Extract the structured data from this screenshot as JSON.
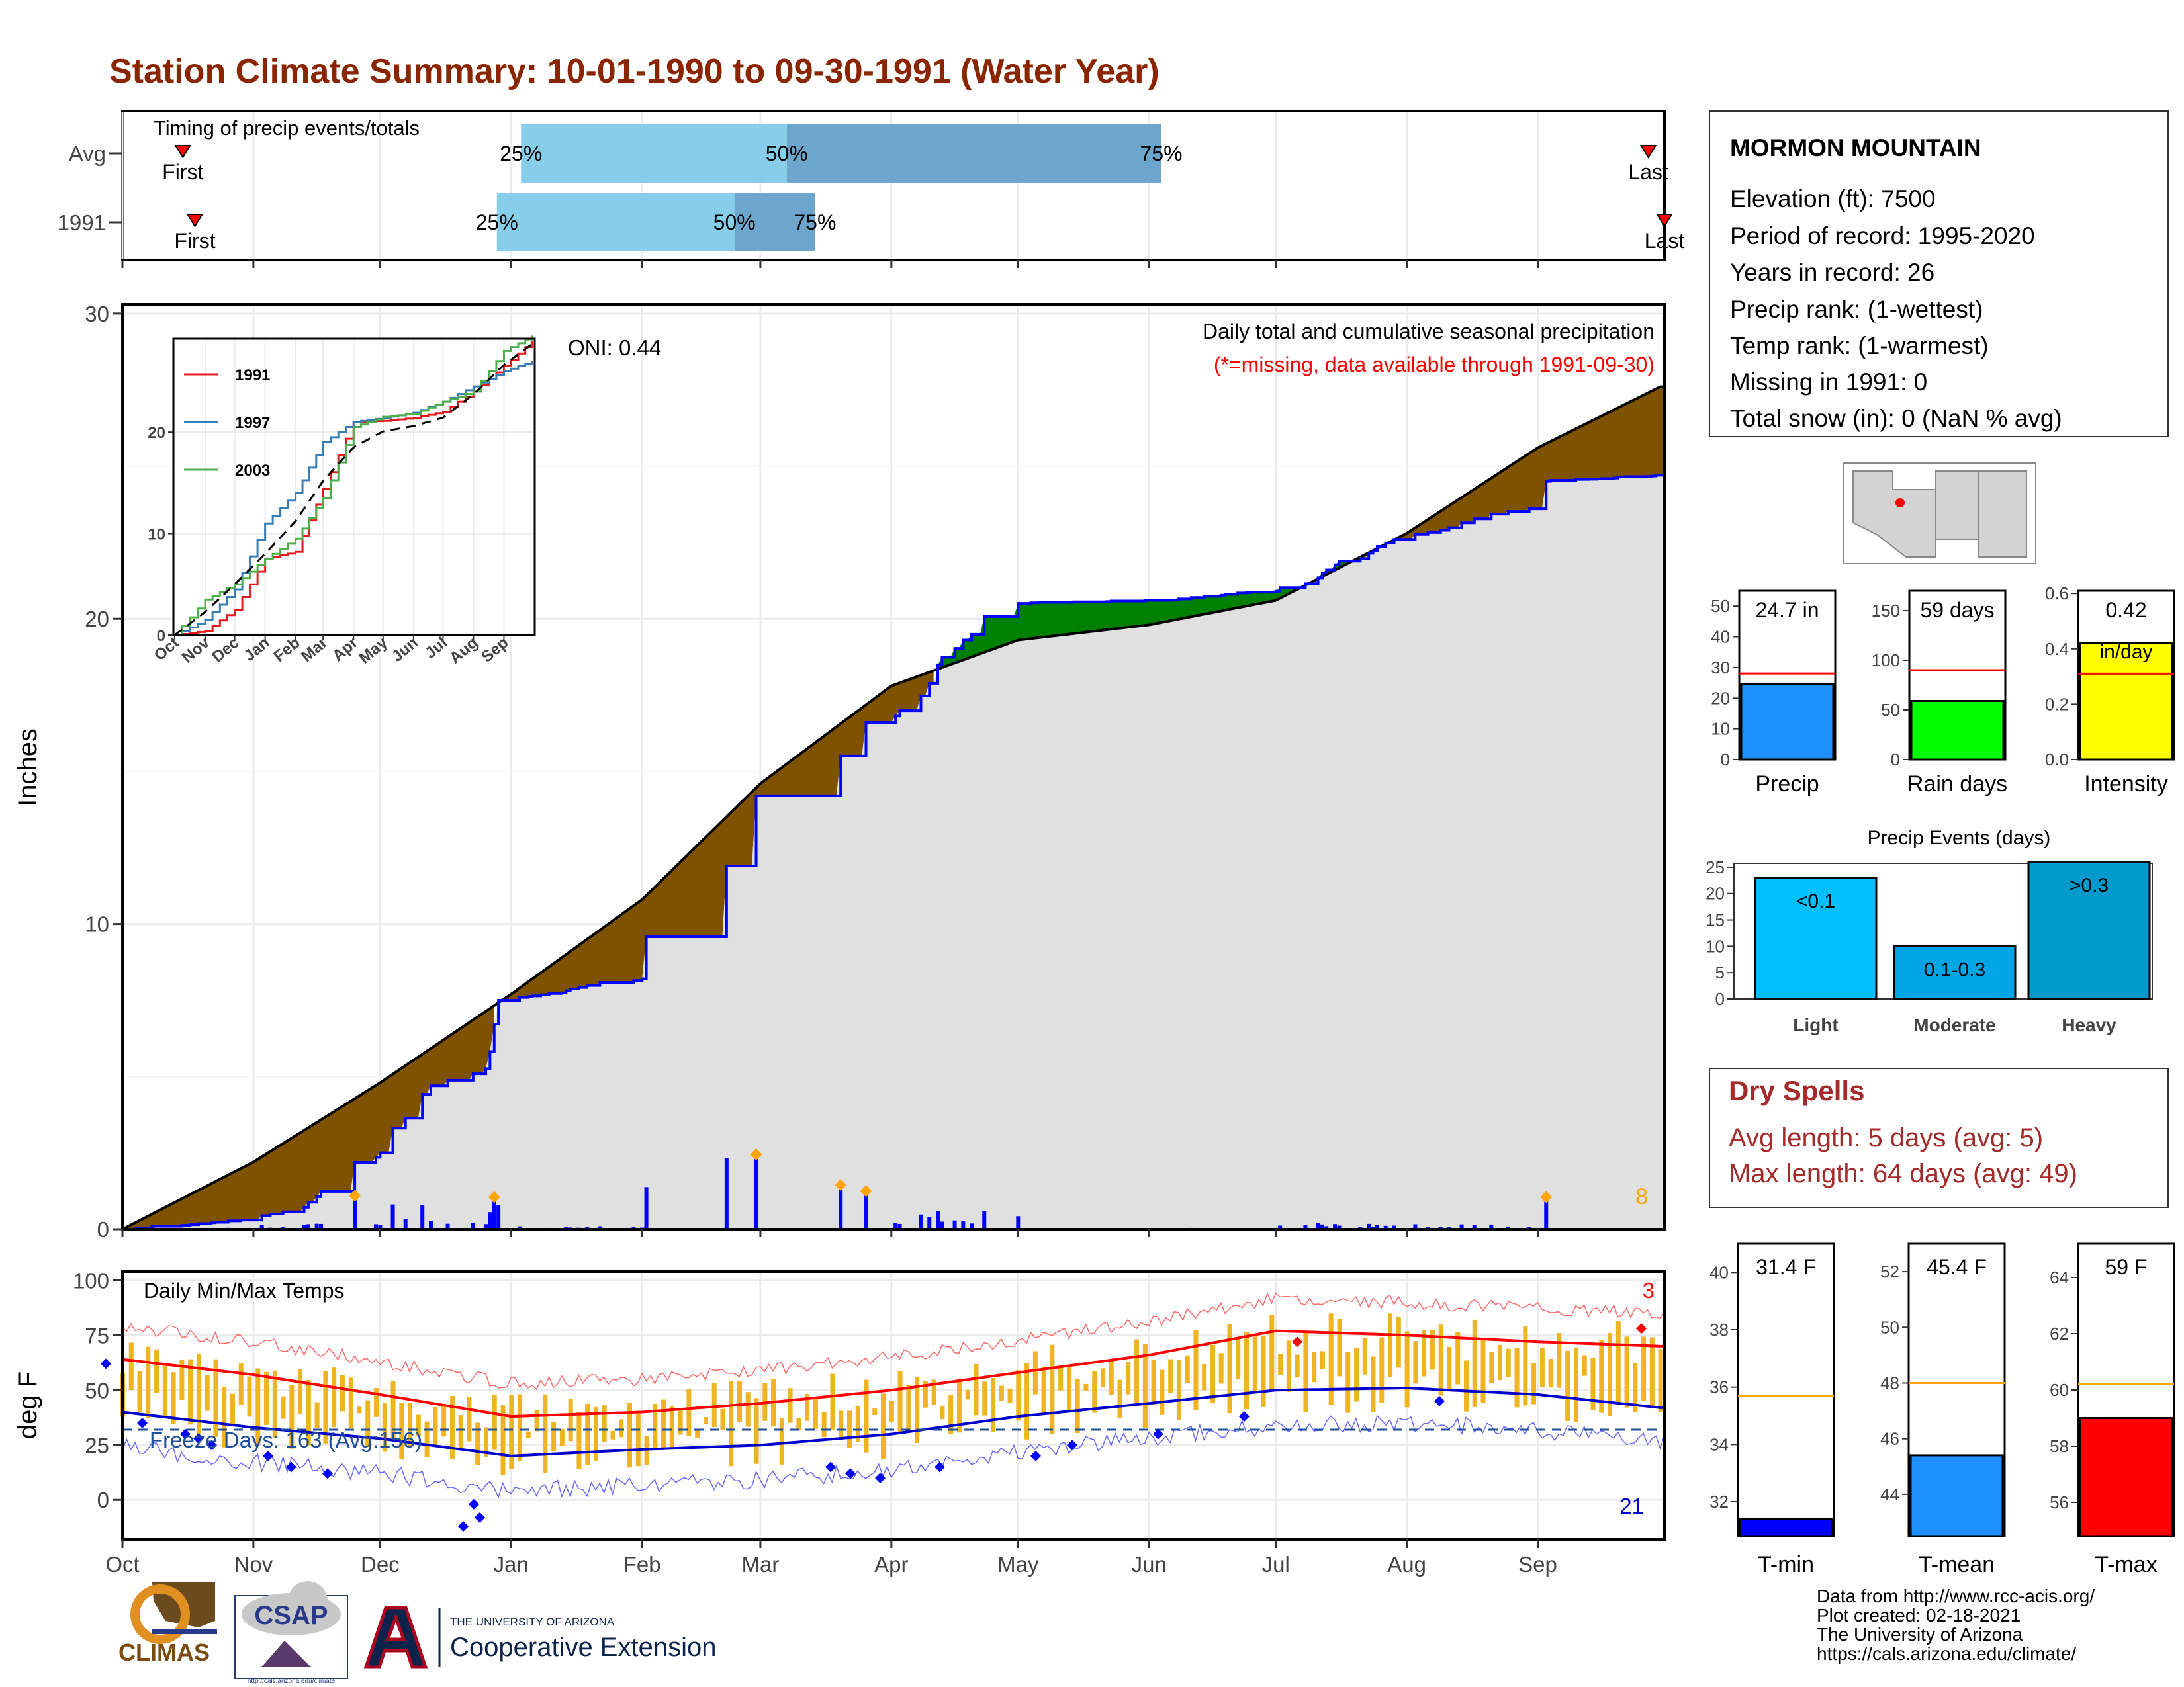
{
  "title": "Station Climate Summary: 10-01-1990 to 09-30-1991 (Water Year)",
  "colors": {
    "title": "#8B2500",
    "deficit": "#7F5200",
    "surplus": "#008000",
    "daily_bar": "#0000FF",
    "cum_line": "#0000FF",
    "timing_light": "#87CEEB",
    "timing_dark": "#6CA6CD",
    "temp_bar": "#EEB422",
    "tmax_line": "#FF0000",
    "tmin_line": "#0000CD",
    "dry_spell_text": "#A52A2A"
  },
  "timing_panel": {
    "label": "Timing of precip events/totals",
    "rows": [
      {
        "name": "Avg",
        "first": "First",
        "last": "Last",
        "p25": "25%",
        "p50": "50%",
        "p75": "75%",
        "first_day": 15,
        "p25_day": 99,
        "p50_day": 165,
        "p75_day": 258,
        "last_day": 379
      },
      {
        "name": "1991",
        "first": "First",
        "last": "Last",
        "p25": "25%",
        "p50": "50%",
        "p75": "75%",
        "first_day": 18,
        "p25_day": 93,
        "p50_day": 152,
        "p75_day": 172,
        "last_day": 383
      }
    ]
  },
  "precip_panel": {
    "ylabel": "Inches",
    "y_ticks": [
      "0",
      "10",
      "20",
      "30"
    ],
    "oni": "ONI: 0.44",
    "subtitle": "Daily total and cumulative seasonal precipitation",
    "missing_note": "(*=missing, data available through 1991-09-30)",
    "extreme_count": "8"
  },
  "inset": {
    "y_ticks": [
      "0",
      "10",
      "20"
    ],
    "x_ticks": [
      "Oct",
      "Nov",
      "Dec",
      "Jan",
      "Feb",
      "Mar",
      "Apr",
      "May",
      "Jun",
      "Jul",
      "Aug",
      "Sep"
    ],
    "legend": [
      {
        "name": "1991",
        "color": "#E41A1C"
      },
      {
        "name": "1997",
        "color": "#377EB8"
      },
      {
        "name": "2003",
        "color": "#4DAF4A"
      }
    ]
  },
  "temp_panel": {
    "ylabel": "deg F",
    "label": "Daily Min/Max Temps",
    "y_ticks": [
      "0",
      "25",
      "50",
      "75",
      "100"
    ],
    "freeze_text": "Freeze Days: 163 (Avg:156)",
    "hot_count": "3",
    "cold_count": "21"
  },
  "x_axis": {
    "months": [
      "Oct",
      "Nov",
      "Dec",
      "Jan",
      "Feb",
      "Mar",
      "Apr",
      "May",
      "Jun",
      "Jul",
      "Aug",
      "Sep"
    ]
  },
  "station_box": {
    "name": "MORMON MOUNTAIN",
    "lines": [
      "Elevation (ft): 7500",
      "Period of record: 1995-2020",
      "Years in record: 26",
      "Precip rank:  (1-wettest)",
      "Temp rank:  (1-warmest)",
      "Missing in 1991: 0",
      "Total snow (in): 0 (NaN % avg)"
    ]
  },
  "summary_bars": [
    {
      "label": "Precip",
      "value_text": "24.7 in",
      "value": 24.7,
      "avg": 28.0,
      "max": 55,
      "ticks": [
        "0",
        "10",
        "20",
        "30",
        "40",
        "50"
      ],
      "color": "#1E90FF"
    },
    {
      "label": "Rain days",
      "value_text": "59 days",
      "value": 59,
      "avg": 90,
      "max": 170,
      "ticks": [
        "0",
        "50",
        "100",
        "150"
      ],
      "color": "#00FF00"
    },
    {
      "label": "Intensity",
      "value_text": "0.42",
      "value_text2": "in/day",
      "value": 0.42,
      "avg": 0.31,
      "max": 0.61,
      "ticks": [
        "0.0",
        "0.2",
        "0.4",
        "0.6"
      ],
      "color": "#FFFF00"
    }
  ],
  "precip_events": {
    "title": "Precip Events (days)",
    "ticks": [
      "0",
      "5",
      "10",
      "15",
      "20",
      "25"
    ],
    "bars": [
      {
        "label": "Light",
        "range": "<0.1",
        "value": 23,
        "color": "#00BFFF"
      },
      {
        "label": "Moderate",
        "range": "0.1-0.3",
        "value": 10,
        "color": "#00A5E6"
      },
      {
        "label": "Heavy",
        "range": ">0.3",
        "value": 26,
        "color": "#0099CC"
      }
    ]
  },
  "dry_spells": {
    "title": "Dry Spells",
    "avg_text": "Avg length: 5 days (avg: 5)",
    "max_text": "Max length: 64 days (avg: 49)"
  },
  "temp_bars": [
    {
      "label": "T-min",
      "value_text": "31.4 F",
      "value": 31.4,
      "avg": 35.7,
      "ymin": 30.8,
      "ymax": 41.0,
      "ticks": [
        "32",
        "34",
        "36",
        "38",
        "40"
      ],
      "color": "#0000FF"
    },
    {
      "label": "T-mean",
      "value_text": "45.4 F",
      "value": 45.4,
      "avg": 48.0,
      "ymin": 42.5,
      "ymax": 53.0,
      "ticks": [
        "44",
        "46",
        "48",
        "50",
        "52"
      ],
      "color": "#1E90FF"
    },
    {
      "label": "T-max",
      "value_text": "59 F",
      "value": 59.0,
      "avg": 60.2,
      "ymin": 54.8,
      "ymax": 65.2,
      "ticks": [
        "56",
        "58",
        "60",
        "62",
        "64"
      ],
      "color": "#FF0000"
    }
  ],
  "logos": {
    "climas": "CLIMAS",
    "csap": "CSAP",
    "csap_url": "http://cals.arizona.edu/climate",
    "ua_small": "THE UNIVERSITY OF ARIZONA",
    "ua_big": "Cooperative Extension"
  },
  "credits": [
    "Data from http://www.rcc-acis.org/",
    "Plot created: 02-18-2021",
    "The University of Arizona",
    "https://cals.arizona.edu/climate/"
  ],
  "chart_data": [
    {
      "type": "area",
      "title": "Daily total and cumulative seasonal precipitation",
      "ylabel": "Inches",
      "ylim": [
        0,
        30
      ],
      "x_unit": "month",
      "x": [
        "Oct 1",
        "Nov 1",
        "Dec 1",
        "Jan 1",
        "Feb 1",
        "Mar 1",
        "Apr 1",
        "May 1",
        "Jun 1",
        "Jul 1",
        "Aug 1",
        "Sep 1",
        "Sep 30"
      ],
      "series": [
        {
          "name": "1991",
          "values": [
            0.0,
            0.3,
            2.5,
            7.5,
            8.2,
            14.2,
            16.6,
            20.5,
            20.6,
            20.9,
            22.6,
            23.6,
            24.7
          ]
        },
        {
          "values": [
            0.0,
            2.2,
            4.8,
            7.7,
            10.8,
            14.6,
            17.8,
            19.3,
            19.8,
            20.6,
            22.8,
            25.6,
            27.6
          ]
        }
      ],
      "daily_key_events": [
        {
          "date": "Nov 25",
          "value": 0.95
        },
        {
          "date": "Dec 28",
          "value": 0.9
        },
        {
          "date": "Feb 28",
          "value": 2.3
        },
        {
          "date": "Mar 20",
          "value": 1.3
        },
        {
          "date": "Mar 26",
          "value": 1.1
        },
        {
          "date": "Sep 3",
          "value": 0.9
        }
      ]
    },
    {
      "type": "line",
      "title": "Daily Min/Max Temps",
      "ylabel": "deg F",
      "ylim": [
        -17,
        104
      ],
      "x": [
        "Oct",
        "Nov",
        "Dec",
        "Jan",
        "Feb",
        "Mar",
        "Apr",
        "May",
        "Jun",
        "Jul",
        "Aug",
        "Sep",
        "Sep 30"
      ],
      "series": [
        {
          "values": [
            64,
            57,
            48,
            38,
            40,
            44,
            50,
            58,
            66,
            77,
            75,
            72,
            70
          ]
        },
        {
          "values": [
            40,
            33,
            28,
            20,
            23,
            25,
            30,
            38,
            44,
            50,
            51,
            48,
            42
          ]
        }
      ]
    },
    {
      "type": "line",
      "ylim": [
        0,
        30
      ],
      "x": [
        "Oct",
        "Nov",
        "Dec",
        "Jan",
        "Feb",
        "Mar",
        "Apr",
        "May",
        "Jun",
        "Jul",
        "Aug",
        "Sep",
        "Sep 30"
      ],
      "series": [
        {
          "name": "1991",
          "values": [
            0,
            0.4,
            2.5,
            7.5,
            8.2,
            14.4,
            21.0,
            21.1,
            21.4,
            22.0,
            24.0,
            26.5,
            29.0
          ]
        },
        {
          "name": "1997",
          "values": [
            0,
            1.5,
            4.5,
            11.0,
            14.0,
            19.0,
            21.0,
            21.4,
            21.9,
            23.0,
            24.5,
            26.0,
            27.0
          ]
        },
        {
          "name": "2003",
          "values": [
            0,
            3.5,
            5.0,
            7.5,
            9.5,
            13.5,
            20.5,
            21.5,
            21.8,
            23.0,
            24.0,
            28.0,
            29.5
          ]
        }
      ]
    }
  ]
}
